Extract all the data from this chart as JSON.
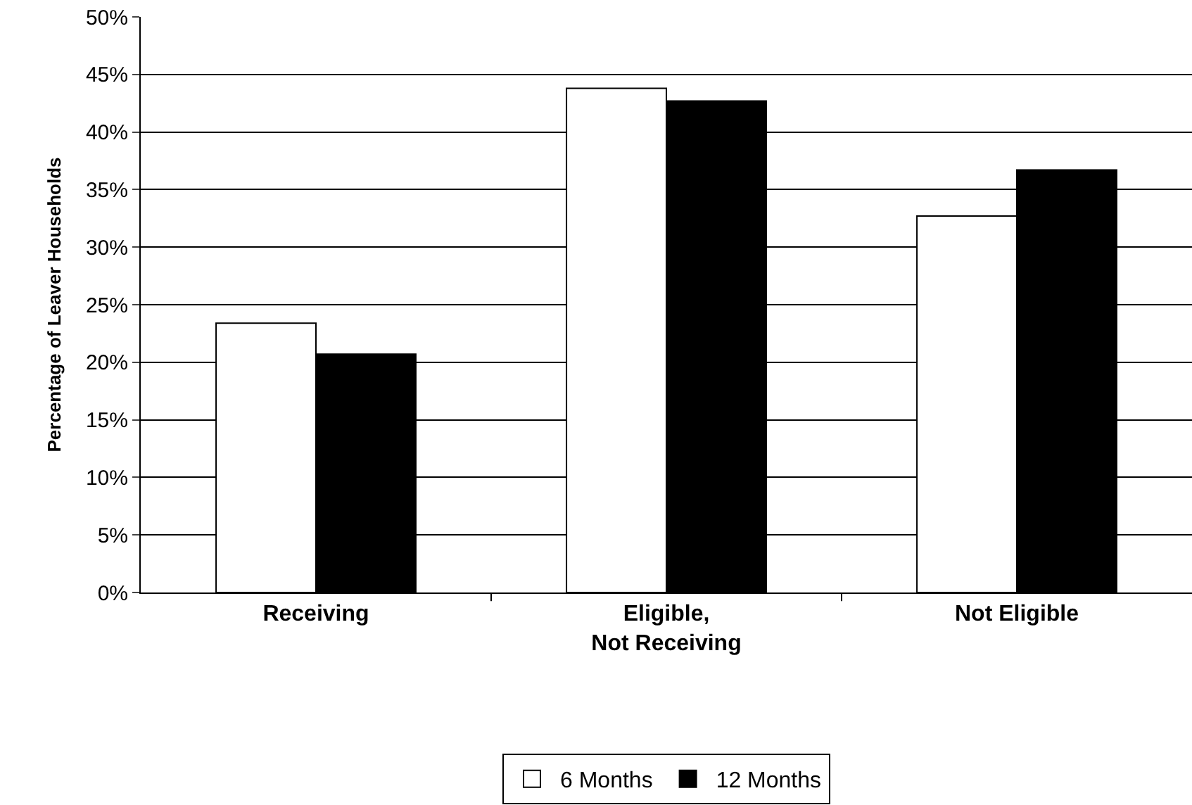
{
  "chart_data": {
    "type": "bar",
    "ylabel": "Percentage of Leaver Households",
    "categories": [
      "Receiving",
      "Eligible, Not Receiving",
      "Not Eligible"
    ],
    "series": [
      {
        "name": "6 Months",
        "color": "#ffffff",
        "values": [
          23.4,
          43.8,
          32.7
        ]
      },
      {
        "name": "12 Months",
        "color": "#000000",
        "values": [
          20.7,
          42.7,
          36.7
        ]
      }
    ],
    "ylim": [
      0,
      50
    ],
    "yticks": [
      {
        "value": 0,
        "label": "0%"
      },
      {
        "value": 5,
        "label": "5%"
      },
      {
        "value": 10,
        "label": "10%"
      },
      {
        "value": 15,
        "label": "15%"
      },
      {
        "value": 20,
        "label": "20%"
      },
      {
        "value": 25,
        "label": "25%"
      },
      {
        "value": 30,
        "label": "30%"
      },
      {
        "value": 35,
        "label": "35%"
      },
      {
        "value": 40,
        "label": "40%"
      },
      {
        "value": 45,
        "label": "45%"
      },
      {
        "value": 50,
        "label": "50%"
      }
    ],
    "grid": "y",
    "legend": "bottom"
  }
}
